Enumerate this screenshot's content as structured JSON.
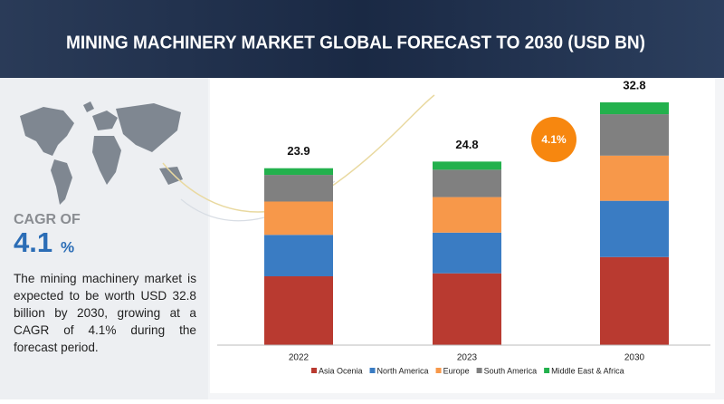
{
  "header": {
    "title": "MINING MACHINERY MARKET GLOBAL FORECAST TO 2030 (USD BN)"
  },
  "sidebar": {
    "cagr_heading": "CAGR OF",
    "cagr_value": "4.1",
    "cagr_unit": "%",
    "description": "The mining machinery market is expected to be worth USD 32.8 billion by 2030, growing at a CAGR of 4.1% during the forecast period."
  },
  "chart_data": {
    "type": "stacked_bar",
    "categories": [
      "2022",
      "2023",
      "2030"
    ],
    "series": [
      {
        "name": "Asia Ocenia",
        "color": "#b93a30",
        "values": [
          9.3,
          9.7,
          11.9
        ]
      },
      {
        "name": "North America",
        "color": "#3a7cc3",
        "values": [
          5.6,
          5.5,
          7.6
        ]
      },
      {
        "name": "Europe",
        "color": "#f7984a",
        "values": [
          4.5,
          4.8,
          6.1
        ]
      },
      {
        "name": "South America",
        "color": "#808080",
        "values": [
          3.6,
          3.7,
          5.6
        ]
      },
      {
        "name": "Middle East & Africa",
        "color": "#23b14d",
        "values": [
          0.9,
          1.1,
          1.6
        ]
      }
    ],
    "totals": [
      23.9,
      24.8,
      32.8
    ],
    "badge": "4.1%",
    "badge_color": "#f7870f"
  }
}
